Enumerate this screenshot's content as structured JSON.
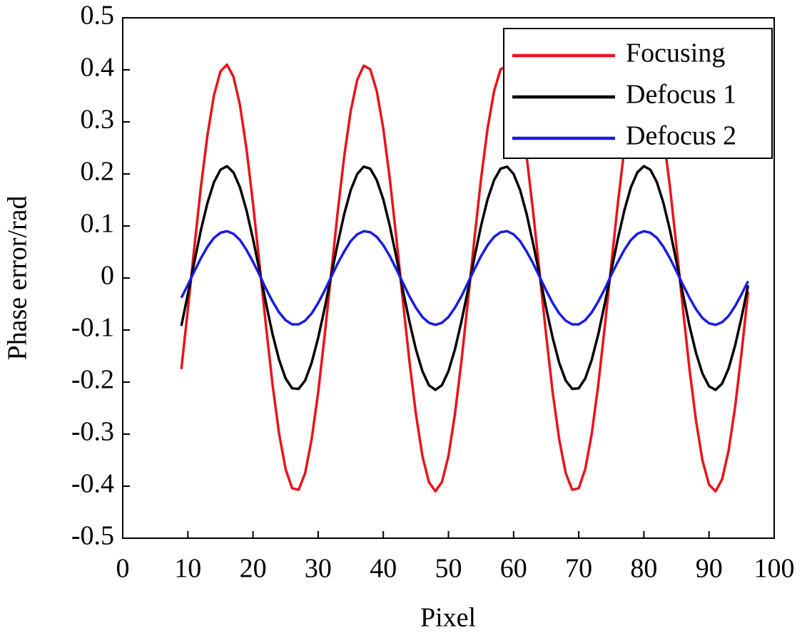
{
  "chart_data": {
    "type": "line",
    "xlabel": "Pixel",
    "ylabel": "Phase error/rad",
    "x": [
      9,
      10,
      11,
      12,
      13,
      14,
      15,
      16,
      17,
      18,
      19,
      20,
      21,
      22,
      23,
      24,
      25,
      26,
      27,
      28,
      29,
      30,
      31,
      32,
      33,
      34,
      35,
      36,
      37,
      38,
      39,
      40,
      41,
      42,
      43,
      44,
      45,
      46,
      47,
      48,
      49,
      50,
      51,
      52,
      53,
      54,
      55,
      56,
      57,
      58,
      59,
      60,
      61,
      62,
      63,
      64,
      65,
      66,
      67,
      68,
      69,
      70,
      71,
      72,
      73,
      74,
      75,
      76,
      77,
      78,
      79,
      80,
      81,
      82,
      83,
      84,
      85,
      86,
      87,
      88,
      89,
      90,
      91,
      92,
      93,
      94,
      95,
      96
    ],
    "series": [
      {
        "name": "Focusing",
        "color": "#e8141b",
        "values": [
          -0.175,
          -0.06,
          0.06,
          0.175,
          0.274,
          0.351,
          0.397,
          0.41,
          0.387,
          0.332,
          0.248,
          0.143,
          0.026,
          -0.093,
          -0.205,
          -0.299,
          -0.367,
          -0.404,
          -0.407,
          -0.375,
          -0.31,
          -0.22,
          -0.11,
          0.009,
          0.127,
          0.234,
          0.321,
          0.381,
          0.408,
          0.401,
          0.359,
          0.287,
          0.19,
          0.077,
          -0.043,
          -0.159,
          -0.261,
          -0.342,
          -0.392,
          -0.41,
          -0.392,
          -0.342,
          -0.261,
          -0.159,
          -0.043,
          0.077,
          0.19,
          0.287,
          0.359,
          0.401,
          0.408,
          0.381,
          0.321,
          0.234,
          0.127,
          0.009,
          -0.11,
          -0.22,
          -0.31,
          -0.375,
          -0.407,
          -0.404,
          -0.367,
          -0.299,
          -0.205,
          -0.093,
          0.026,
          0.143,
          0.248,
          0.332,
          0.387,
          0.41,
          0.397,
          0.351,
          0.274,
          0.175,
          0.06,
          -0.06,
          -0.175,
          -0.274,
          -0.351,
          -0.397,
          -0.41,
          -0.387,
          -0.332,
          -0.248,
          -0.143,
          -0.026
        ]
      },
      {
        "name": "Defocus 1",
        "color": "#000000",
        "values": [
          -0.092,
          -0.031,
          0.031,
          0.092,
          0.144,
          0.184,
          0.208,
          0.215,
          0.203,
          0.174,
          0.13,
          0.075,
          0.014,
          -0.049,
          -0.108,
          -0.157,
          -0.193,
          -0.212,
          -0.213,
          -0.197,
          -0.163,
          -0.115,
          -0.058,
          0.005,
          0.066,
          0.123,
          0.169,
          0.2,
          0.214,
          0.21,
          0.188,
          0.151,
          0.1,
          0.04,
          -0.023,
          -0.083,
          -0.137,
          -0.179,
          -0.206,
          -0.215,
          -0.206,
          -0.179,
          -0.137,
          -0.083,
          -0.023,
          0.04,
          0.1,
          0.151,
          0.188,
          0.21,
          0.214,
          0.2,
          0.169,
          0.123,
          0.066,
          0.005,
          -0.058,
          -0.115,
          -0.163,
          -0.197,
          -0.213,
          -0.212,
          -0.193,
          -0.157,
          -0.108,
          -0.049,
          0.014,
          0.075,
          0.13,
          0.174,
          0.203,
          0.215,
          0.208,
          0.184,
          0.144,
          0.092,
          0.031,
          -0.031,
          -0.092,
          -0.144,
          -0.184,
          -0.208,
          -0.215,
          -0.203,
          -0.174,
          -0.13,
          -0.075,
          -0.014
        ]
      },
      {
        "name": "Defocus 2",
        "color": "#1a1ae6",
        "values": [
          -0.038,
          -0.013,
          0.013,
          0.038,
          0.06,
          0.077,
          0.087,
          0.09,
          0.085,
          0.073,
          0.054,
          0.031,
          0.006,
          -0.021,
          -0.045,
          -0.066,
          -0.081,
          -0.089,
          -0.089,
          -0.082,
          -0.068,
          -0.048,
          -0.024,
          0.002,
          0.028,
          0.051,
          0.071,
          0.084,
          0.09,
          0.088,
          0.079,
          0.063,
          0.042,
          0.017,
          -0.009,
          -0.035,
          -0.057,
          -0.075,
          -0.086,
          -0.09,
          -0.086,
          -0.075,
          -0.057,
          -0.035,
          -0.009,
          0.017,
          0.042,
          0.063,
          0.079,
          0.088,
          0.09,
          0.084,
          0.071,
          0.051,
          0.028,
          0.002,
          -0.024,
          -0.048,
          -0.068,
          -0.082,
          -0.089,
          -0.089,
          -0.081,
          -0.066,
          -0.045,
          -0.021,
          0.006,
          0.031,
          0.054,
          0.073,
          0.085,
          0.09,
          0.087,
          0.077,
          0.06,
          0.038,
          0.013,
          -0.013,
          -0.038,
          -0.06,
          -0.077,
          -0.087,
          -0.09,
          -0.085,
          -0.073,
          -0.054,
          -0.031,
          -0.006
        ]
      }
    ],
    "xlim": [
      0,
      100
    ],
    "xticks": [
      0,
      10,
      20,
      30,
      40,
      50,
      60,
      70,
      80,
      90,
      100
    ],
    "ylim": [
      -0.5,
      0.5
    ],
    "yticks": [
      -0.5,
      -0.4,
      -0.3,
      -0.2,
      -0.1,
      0,
      0.1,
      0.2,
      0.3,
      0.4,
      0.5
    ],
    "grid": false,
    "legend": "upper-right"
  }
}
